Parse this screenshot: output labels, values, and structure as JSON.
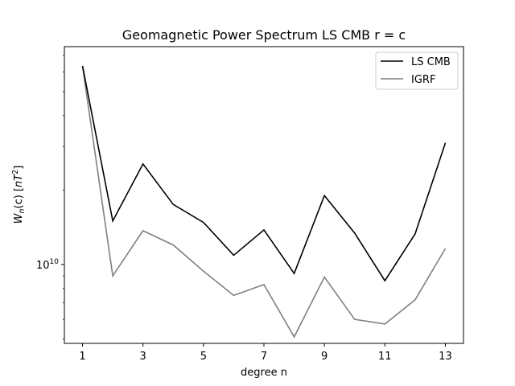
{
  "chart_data": {
    "type": "line",
    "title": "Geomagnetic Power Spectrum LS CMB r = c",
    "xlabel": "degree n",
    "ylabel_parts": {
      "base": "W",
      "sub": "n",
      "arg": "(c) [",
      "unit": "nT",
      "exp": "2",
      "close": "]"
    },
    "y_scale": "log",
    "x": [
      1,
      2,
      3,
      4,
      5,
      6,
      7,
      8,
      9,
      10,
      11,
      12,
      13
    ],
    "xlim": [
      0.4,
      13.6
    ],
    "xticks": [
      1,
      3,
      5,
      7,
      9,
      11,
      13
    ],
    "ylim": [
      4800000000.0,
      76000000000.0
    ],
    "yticks": [
      {
        "value": 10000000000.0,
        "base": "10",
        "exp": "10"
      }
    ],
    "series": [
      {
        "name": "LS CMB",
        "color": "#000000",
        "values": [
          63500000000.0,
          15000000000.0,
          25500000000.0,
          17500000000.0,
          14800000000.0,
          10900000000.0,
          13800000000.0,
          9200000000.0,
          19000000000.0,
          13400000000.0,
          8600000000.0,
          13300000000.0,
          31000000000.0
        ]
      },
      {
        "name": "IGRF",
        "color": "#808080",
        "values": [
          63500000000.0,
          9000000000.0,
          13700000000.0,
          12000000000.0,
          9400000000.0,
          7500000000.0,
          8300000000.0,
          5100000000.0,
          8900000000.0,
          6000000000.0,
          5750000000.0,
          7200000000.0,
          11600000000.0
        ]
      }
    ],
    "legend": {
      "placement": "top-right"
    },
    "grid": false
  }
}
